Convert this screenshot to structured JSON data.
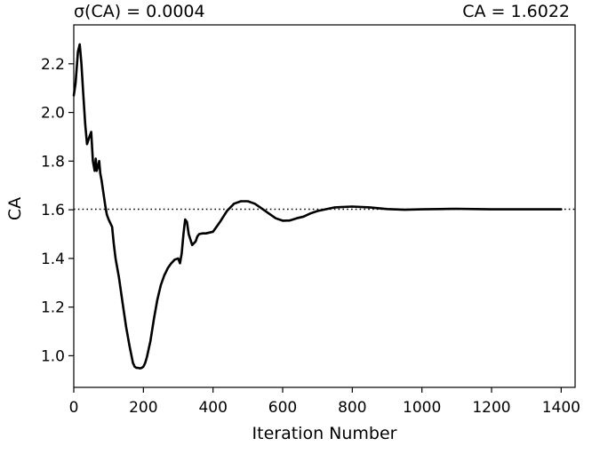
{
  "chart_data": {
    "type": "line",
    "title": "",
    "annotations": {
      "left": "σ(CA) = 0.0004",
      "right": "CA = 1.6022"
    },
    "xlabel": "Iteration Number",
    "ylabel": "CA",
    "xlim": [
      0,
      1440
    ],
    "ylim": [
      0.87,
      2.36
    ],
    "xticks": [
      0,
      200,
      400,
      600,
      800,
      1000,
      1200,
      1400
    ],
    "yticks": [
      1.0,
      1.2,
      1.4,
      1.6,
      1.8,
      2.0,
      2.2
    ],
    "ytick_labels": [
      "1.0",
      "1.2",
      "1.4",
      "1.6",
      "1.8",
      "2.0",
      "2.2"
    ],
    "grid": false,
    "reference_line": {
      "y": 1.6022,
      "style": "dotted"
    },
    "series": [
      {
        "color": "#000000",
        "x": [
          0,
          5,
          12,
          17,
          22,
          27,
          33,
          38,
          45,
          50,
          55,
          60,
          63,
          66,
          70,
          73,
          76,
          80,
          85,
          90,
          95,
          100,
          110,
          115,
          120,
          130,
          140,
          150,
          160,
          170,
          175,
          180,
          185,
          190,
          195,
          200,
          205,
          210,
          220,
          230,
          240,
          250,
          260,
          270,
          280,
          290,
          300,
          305,
          310,
          315,
          320,
          325,
          330,
          340,
          350,
          355,
          360,
          370,
          380,
          400,
          420,
          440,
          460,
          480,
          500,
          520,
          540,
          560,
          580,
          600,
          620,
          640,
          660,
          680,
          700,
          750,
          800,
          850,
          900,
          950,
          1000,
          1050,
          1100,
          1150,
          1200,
          1250,
          1300,
          1350,
          1400
        ],
        "y": [
          2.07,
          2.12,
          2.25,
          2.28,
          2.2,
          2.08,
          1.95,
          1.87,
          1.9,
          1.92,
          1.8,
          1.76,
          1.81,
          1.76,
          1.78,
          1.8,
          1.75,
          1.72,
          1.67,
          1.62,
          1.58,
          1.56,
          1.53,
          1.46,
          1.4,
          1.32,
          1.22,
          1.12,
          1.04,
          0.97,
          0.955,
          0.95,
          0.95,
          0.948,
          0.95,
          0.955,
          0.97,
          0.995,
          1.06,
          1.15,
          1.23,
          1.29,
          1.33,
          1.36,
          1.38,
          1.395,
          1.4,
          1.38,
          1.42,
          1.5,
          1.56,
          1.55,
          1.5,
          1.455,
          1.47,
          1.49,
          1.5,
          1.503,
          1.503,
          1.51,
          1.55,
          1.595,
          1.625,
          1.635,
          1.635,
          1.625,
          1.605,
          1.585,
          1.565,
          1.555,
          1.556,
          1.565,
          1.572,
          1.585,
          1.595,
          1.61,
          1.613,
          1.61,
          1.603,
          1.6,
          1.602,
          1.603,
          1.604,
          1.603,
          1.602,
          1.602,
          1.602,
          1.602,
          1.602
        ]
      }
    ]
  }
}
